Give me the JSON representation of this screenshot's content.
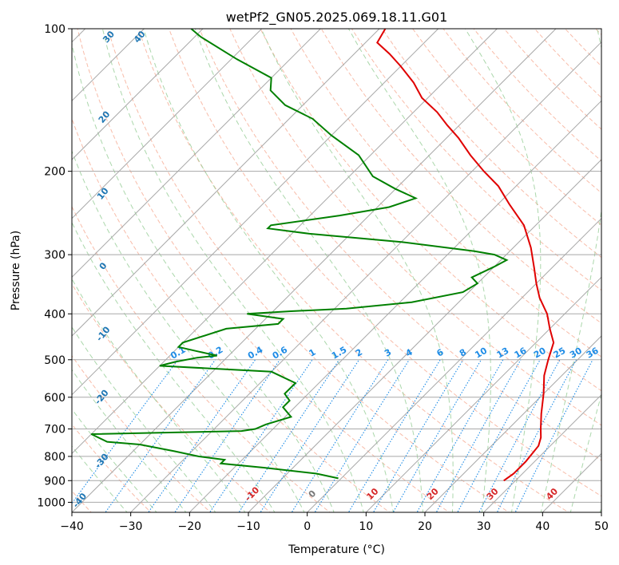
{
  "chart_data": {
    "type": "line",
    "title": "wetPf2_GN05.2025.069.18.11.G01",
    "xlabel": "Temperature (°C)",
    "ylabel": "Pressure (hPa)",
    "xlim": [
      -40,
      50
    ],
    "ylim": [
      1050,
      100
    ],
    "y_scale": "log",
    "x_ticks": [
      -40,
      -30,
      -20,
      -10,
      0,
      10,
      20,
      30,
      40,
      50
    ],
    "y_ticks": [
      100,
      200,
      300,
      400,
      500,
      600,
      700,
      800,
      900,
      1000
    ],
    "skew_degrees": 45,
    "grid": true,
    "series": [
      {
        "kind": "temperature",
        "color": "#e00000",
        "points": [
          [
            28,
            900
          ],
          [
            28.5,
            870
          ],
          [
            28.5,
            820
          ],
          [
            28,
            760
          ],
          [
            27,
            730
          ],
          [
            25.5,
            700
          ],
          [
            23,
            650
          ],
          [
            20,
            590
          ],
          [
            17,
            540
          ],
          [
            15,
            500
          ],
          [
            13,
            460
          ],
          [
            10,
            430
          ],
          [
            7,
            400
          ],
          [
            3,
            370
          ],
          [
            0,
            345
          ],
          [
            -3,
            320
          ],
          [
            -7,
            290
          ],
          [
            -12,
            260
          ],
          [
            -18,
            235
          ],
          [
            -23,
            215
          ],
          [
            -28,
            200
          ],
          [
            -33,
            185
          ],
          [
            -38,
            170
          ],
          [
            -42,
            160
          ],
          [
            -46,
            150
          ],
          [
            -51,
            140
          ],
          [
            -55,
            130
          ],
          [
            -60,
            120
          ],
          [
            -64,
            113
          ],
          [
            -68,
            107
          ],
          [
            -69,
            100
          ]
        ]
      },
      {
        "kind": "dewpoint",
        "color": "#008000",
        "points": [
          [
            -0.5,
            890
          ],
          [
            -5,
            870
          ],
          [
            -15,
            845
          ],
          [
            -23,
            828
          ],
          [
            -23,
            813
          ],
          [
            -28,
            800
          ],
          [
            -33,
            780
          ],
          [
            -40,
            755
          ],
          [
            -46,
            745
          ],
          [
            -50,
            718
          ],
          [
            -25,
            707
          ],
          [
            -23,
            700
          ],
          [
            -22,
            685
          ],
          [
            -19,
            660
          ],
          [
            -22,
            630
          ],
          [
            -22,
            610
          ],
          [
            -24,
            590
          ],
          [
            -24,
            560
          ],
          [
            -30,
            530
          ],
          [
            -50,
            515
          ],
          [
            -48,
            505
          ],
          [
            -45,
            495
          ],
          [
            -42,
            490
          ],
          [
            -46,
            480
          ],
          [
            -50,
            470
          ],
          [
            -50,
            460
          ],
          [
            -45,
            430
          ],
          [
            -37,
            420
          ],
          [
            -37,
            410
          ],
          [
            -44,
            400
          ],
          [
            -37,
            395
          ],
          [
            -28,
            390
          ],
          [
            -18,
            378
          ],
          [
            -11,
            360
          ],
          [
            -10,
            345
          ],
          [
            -12,
            335
          ],
          [
            -10,
            318
          ],
          [
            -9,
            308
          ],
          [
            -12,
            300
          ],
          [
            -16,
            295
          ],
          [
            -30,
            282
          ],
          [
            -47,
            271
          ],
          [
            -55,
            264
          ],
          [
            -55,
            260
          ],
          [
            -45,
            248
          ],
          [
            -38,
            238
          ],
          [
            -35,
            228
          ],
          [
            -40,
            218
          ],
          [
            -46,
            205
          ],
          [
            -52,
            185
          ],
          [
            -60,
            168
          ],
          [
            -66,
            155
          ],
          [
            -73,
            145
          ],
          [
            -78,
            135
          ],
          [
            -80,
            127
          ],
          [
            -89,
            116
          ],
          [
            -99,
            104
          ],
          [
            -102,
            100
          ]
        ]
      }
    ],
    "mixing_ratio_lines": [
      0.1,
      0.2,
      0.4,
      0.6,
      1,
      1.5,
      2,
      3,
      4,
      6,
      8,
      10,
      13,
      16,
      20,
      25,
      30,
      36
    ],
    "dry_adiabats": [
      -100,
      -90,
      -80,
      -70,
      -60,
      -50,
      -40,
      -30,
      -20,
      -10,
      0,
      10,
      20,
      30,
      40
    ],
    "moist_adiabats": [
      -10,
      0,
      10,
      20,
      30,
      40
    ],
    "colors": {
      "temperature": "#e00000",
      "dewpoint": "#008000",
      "isotherm_grid": "#a8a8a8",
      "dry_adiabat": "#f6a58c",
      "moist_adiabat": "#96cd96",
      "mixing_ratio": "#1e8ce6",
      "isobar_grid": "#a8a8a8",
      "dry_label": "#1f77b4",
      "moist_label": "#d62728",
      "mixing_label": "#1e8ce6"
    }
  }
}
